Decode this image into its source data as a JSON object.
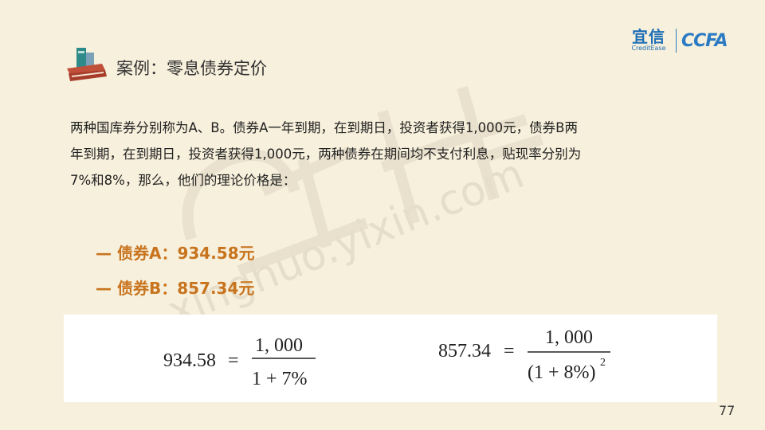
{
  "logo": {
    "brand_cn": "宜信",
    "brand_en": "CreditEase",
    "partner": "CCFA"
  },
  "watermark": {
    "cn": "星火金服",
    "url": "xinghuo.yixin.com"
  },
  "title": "案例：零息债券定价",
  "body_lines": [
    "两种国库券分别称为A、B。债券A一年到期，在到期日，投资者获得1,000元，债券B两",
    "年到期，在到期日，投资者获得1,000元，两种债券在期间均不支付利息，贴现率分别为",
    "7%和8%，那么，他们的理论价格是："
  ],
  "prices": [
    {
      "text": "— 债券A：934.58元"
    },
    {
      "text": "— 债券B：857.34元"
    }
  ],
  "formulas": {
    "a": {
      "lhs": "934.58",
      "eq": "=",
      "num": "1, 000",
      "den": "1 + 7%"
    },
    "b": {
      "lhs": "857.34",
      "eq": "=",
      "num": "1, 000",
      "den": "(1 + 8%)",
      "exp": "2"
    }
  },
  "page_number": "77",
  "colors": {
    "background": "#f7f0dc",
    "accent": "#c8741e",
    "brand_blue": "#1f6fb6"
  }
}
